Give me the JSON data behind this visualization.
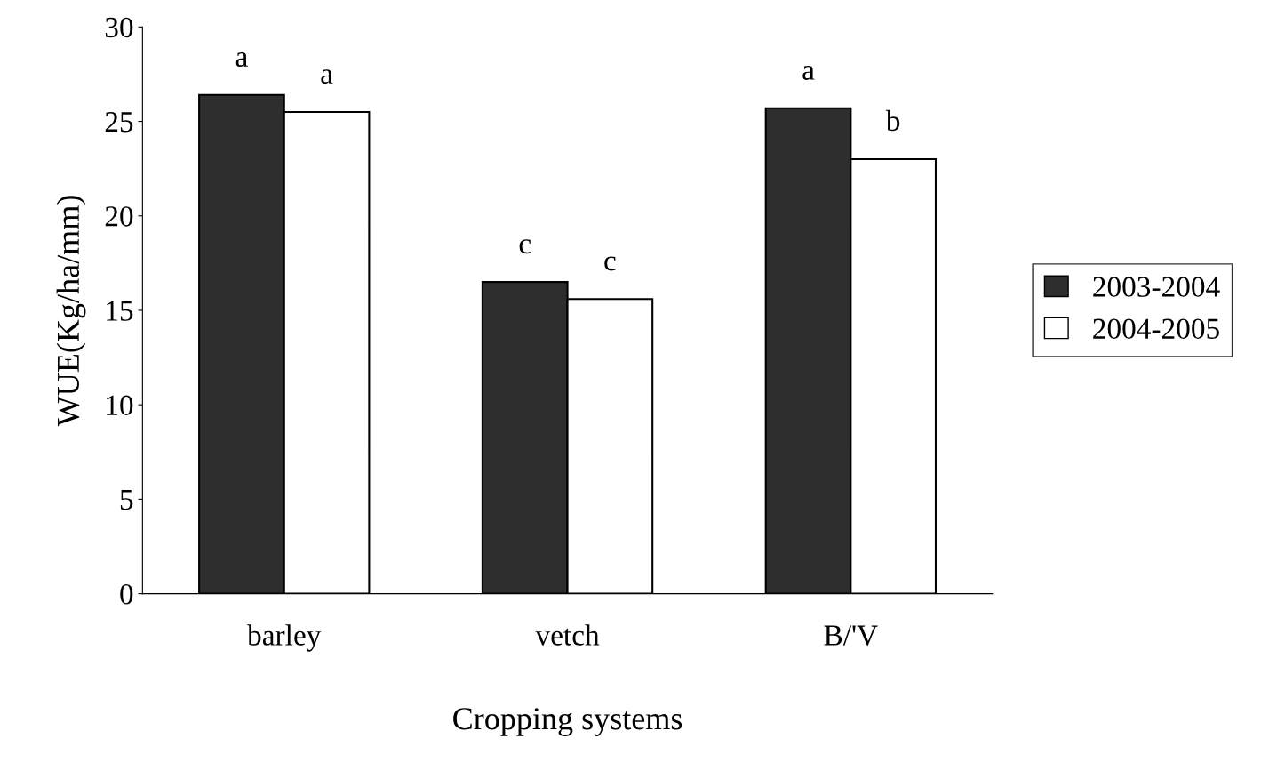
{
  "chart_data": {
    "type": "bar",
    "xlabel": "Cropping systems",
    "ylabel": "WUE(Kg/ha/mm)",
    "categories": [
      "barley",
      "vetch",
      "B/'V"
    ],
    "series": [
      {
        "name": "2003-2004",
        "color": "#2e2e2e",
        "values": [
          26.4,
          16.5,
          25.7
        ],
        "value_labels": [
          "a",
          "c",
          "a"
        ]
      },
      {
        "name": "2004-2005",
        "color": "#ffffff",
        "values": [
          25.5,
          15.6,
          23.0
        ],
        "value_labels": [
          "a",
          "c",
          "b"
        ]
      }
    ],
    "ylim": [
      0,
      30
    ],
    "yticks": [
      0,
      5,
      10,
      15,
      20,
      25,
      30
    ],
    "grid": false,
    "legend": "right"
  }
}
